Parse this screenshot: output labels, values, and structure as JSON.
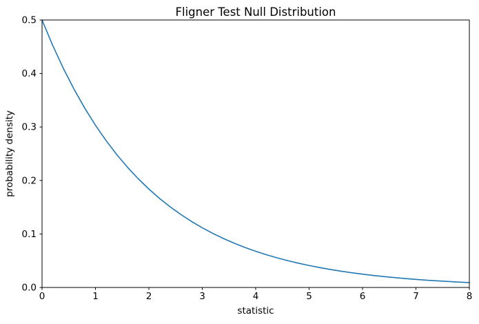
{
  "chart_data": {
    "type": "line",
    "title": "Fligner Test Null Distribution",
    "xlabel": "statistic",
    "ylabel": "probability density",
    "xlim": [
      0,
      8
    ],
    "ylim": [
      0,
      0.5
    ],
    "x_ticks": [
      0,
      1,
      2,
      3,
      4,
      5,
      6,
      7,
      8
    ],
    "x_tick_labels": [
      "0",
      "1",
      "2",
      "3",
      "4",
      "5",
      "6",
      "7",
      "8"
    ],
    "y_ticks": [
      0.0,
      0.1,
      0.2,
      0.3,
      0.4,
      0.5
    ],
    "y_tick_labels": [
      "0.0",
      "0.1",
      "0.2",
      "0.3",
      "0.4",
      "0.5"
    ],
    "grid": false,
    "legend": null,
    "line_color": "#1f77b4",
    "background_color": "#ffffff",
    "spine_color": "#000000",
    "x": [
      0.0,
      0.2,
      0.4,
      0.6,
      0.8,
      1.0,
      1.2,
      1.4,
      1.6,
      1.8,
      2.0,
      2.2,
      2.4,
      2.6,
      2.8,
      3.0,
      3.2,
      3.4,
      3.6,
      3.8,
      4.0,
      4.2,
      4.4,
      4.6,
      4.8,
      5.0,
      5.2,
      5.4,
      5.6,
      5.8,
      6.0,
      6.2,
      6.4,
      6.6,
      6.8,
      7.0,
      7.2,
      7.4,
      7.6,
      7.8,
      8.0
    ],
    "y": [
      0.5,
      0.45242,
      0.40937,
      0.37041,
      0.33516,
      0.30327,
      0.27441,
      0.24829,
      0.22466,
      0.20328,
      0.18394,
      0.16643,
      0.1506,
      0.13627,
      0.1233,
      0.11157,
      0.10095,
      0.09134,
      0.08265,
      0.07479,
      0.06767,
      0.06123,
      0.0554,
      0.05013,
      0.04536,
      0.04104,
      0.03714,
      0.03361,
      0.03041,
      0.02751,
      0.02489,
      0.02252,
      0.02038,
      0.01844,
      0.01669,
      0.0151,
      0.01366,
      0.01236,
      0.01118,
      0.01012,
      0.00916
    ]
  }
}
